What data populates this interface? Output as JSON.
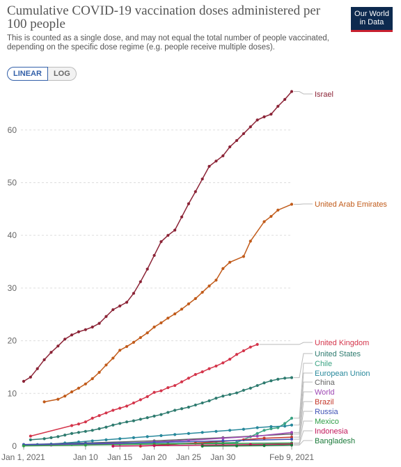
{
  "header": {
    "title": "Cumulative COVID-19 vaccination doses administered per 100 people",
    "subtitle": "This is counted as a single dose, and may not equal the total number of people vaccinated, depending on the specific dose regime (e.g. people receive multiple doses).",
    "logo_line1": "Our World",
    "logo_line2": "in Data"
  },
  "controls": {
    "linear_label": "LINEAR",
    "log_label": "LOG"
  },
  "colors": {
    "accent": "#3360a9",
    "logo_bg": "#0d2a4f",
    "logo_stripe": "#c8202f"
  },
  "chart_data": {
    "type": "line",
    "title": "Cumulative COVID-19 vaccination doses administered per 100 people",
    "xlabel": "",
    "ylabel": "",
    "x_range": [
      "2021-01-01",
      "2021-02-09"
    ],
    "ylim": [
      0,
      67.5
    ],
    "y_ticks": [
      0,
      10,
      20,
      30,
      40,
      50,
      60
    ],
    "x_ticks": [
      {
        "date": "2021-01-01",
        "label": "Jan 1, 2021"
      },
      {
        "date": "2021-01-10",
        "label": "Jan 10"
      },
      {
        "date": "2021-01-15",
        "label": "Jan 15"
      },
      {
        "date": "2021-01-20",
        "label": "Jan 20"
      },
      {
        "date": "2021-01-25",
        "label": "Jan 25"
      },
      {
        "date": "2021-01-30",
        "label": "Jan 30"
      },
      {
        "date": "2021-02-09",
        "label": "Feb 9, 2021"
      }
    ],
    "grid": "horizontal-dashed",
    "legend": "right-end-labels",
    "series": [
      {
        "name": "Israel",
        "color": "#8b2336",
        "points": [
          [
            "2021-01-01",
            12.3
          ],
          [
            "2021-01-02",
            13.1
          ],
          [
            "2021-01-03",
            14.7
          ],
          [
            "2021-01-04",
            16.4
          ],
          [
            "2021-01-05",
            17.8
          ],
          [
            "2021-01-06",
            19.0
          ],
          [
            "2021-01-07",
            20.3
          ],
          [
            "2021-01-08",
            21.1
          ],
          [
            "2021-01-09",
            21.7
          ],
          [
            "2021-01-10",
            22.1
          ],
          [
            "2021-01-11",
            22.6
          ],
          [
            "2021-01-12",
            23.3
          ],
          [
            "2021-01-13",
            24.6
          ],
          [
            "2021-01-14",
            25.9
          ],
          [
            "2021-01-15",
            26.6
          ],
          [
            "2021-01-16",
            27.3
          ],
          [
            "2021-01-17",
            29.0
          ],
          [
            "2021-01-18",
            31.2
          ],
          [
            "2021-01-19",
            33.6
          ],
          [
            "2021-01-20",
            36.2
          ],
          [
            "2021-01-21",
            38.8
          ],
          [
            "2021-01-22",
            40.0
          ],
          [
            "2021-01-23",
            41.0
          ],
          [
            "2021-01-24",
            43.5
          ],
          [
            "2021-01-25",
            46.0
          ],
          [
            "2021-01-26",
            48.3
          ],
          [
            "2021-01-27",
            50.7
          ],
          [
            "2021-01-28",
            53.1
          ],
          [
            "2021-01-29",
            54.1
          ],
          [
            "2021-01-30",
            55.1
          ],
          [
            "2021-01-31",
            56.8
          ],
          [
            "2021-02-01",
            58.0
          ],
          [
            "2021-02-02",
            59.3
          ],
          [
            "2021-02-03",
            60.6
          ],
          [
            "2021-02-04",
            61.9
          ],
          [
            "2021-02-05",
            62.5
          ],
          [
            "2021-02-06",
            63.0
          ],
          [
            "2021-02-07",
            64.5
          ],
          [
            "2021-02-08",
            65.8
          ],
          [
            "2021-02-09",
            67.3
          ]
        ]
      },
      {
        "name": "United Arab Emirates",
        "color": "#c15b1a",
        "points": [
          [
            "2021-01-04",
            8.4
          ],
          [
            "2021-01-06",
            8.9
          ],
          [
            "2021-01-07",
            9.5
          ],
          [
            "2021-01-08",
            10.3
          ],
          [
            "2021-01-09",
            11.0
          ],
          [
            "2021-01-10",
            11.8
          ],
          [
            "2021-01-11",
            12.8
          ],
          [
            "2021-01-12",
            14.0
          ],
          [
            "2021-01-13",
            15.4
          ],
          [
            "2021-01-14",
            16.7
          ],
          [
            "2021-01-15",
            18.2
          ],
          [
            "2021-01-16",
            18.9
          ],
          [
            "2021-01-17",
            19.7
          ],
          [
            "2021-01-18",
            20.6
          ],
          [
            "2021-01-19",
            21.5
          ],
          [
            "2021-01-20",
            22.6
          ],
          [
            "2021-01-21",
            23.4
          ],
          [
            "2021-01-22",
            24.3
          ],
          [
            "2021-01-23",
            25.1
          ],
          [
            "2021-01-24",
            26.0
          ],
          [
            "2021-01-25",
            27.0
          ],
          [
            "2021-01-26",
            28.0
          ],
          [
            "2021-01-27",
            29.2
          ],
          [
            "2021-01-28",
            30.4
          ],
          [
            "2021-01-29",
            31.5
          ],
          [
            "2021-01-30",
            33.7
          ],
          [
            "2021-01-31",
            34.9
          ],
          [
            "2021-02-02",
            36.0
          ],
          [
            "2021-02-03",
            38.9
          ],
          [
            "2021-02-05",
            42.6
          ],
          [
            "2021-02-06",
            43.6
          ],
          [
            "2021-02-07",
            44.8
          ],
          [
            "2021-02-09",
            45.9
          ]
        ]
      },
      {
        "name": "United Kingdom",
        "color": "#d4344a",
        "points": [
          [
            "2021-01-02",
            1.9
          ],
          [
            "2021-01-08",
            3.9
          ],
          [
            "2021-01-09",
            4.2
          ],
          [
            "2021-01-10",
            4.6
          ],
          [
            "2021-01-11",
            5.3
          ],
          [
            "2021-01-12",
            5.8
          ],
          [
            "2021-01-13",
            6.3
          ],
          [
            "2021-01-14",
            6.8
          ],
          [
            "2021-01-15",
            7.2
          ],
          [
            "2021-01-16",
            7.6
          ],
          [
            "2021-01-17",
            8.2
          ],
          [
            "2021-01-18",
            8.8
          ],
          [
            "2021-01-19",
            9.4
          ],
          [
            "2021-01-20",
            10.2
          ],
          [
            "2021-01-21",
            10.5
          ],
          [
            "2021-01-22",
            11.1
          ],
          [
            "2021-01-23",
            11.5
          ],
          [
            "2021-01-24",
            12.2
          ],
          [
            "2021-01-25",
            12.9
          ],
          [
            "2021-01-26",
            13.6
          ],
          [
            "2021-01-27",
            14.1
          ],
          [
            "2021-01-28",
            14.7
          ],
          [
            "2021-01-29",
            15.2
          ],
          [
            "2021-01-30",
            15.8
          ],
          [
            "2021-01-31",
            16.5
          ],
          [
            "2021-02-01",
            17.4
          ],
          [
            "2021-02-02",
            18.1
          ],
          [
            "2021-02-03",
            18.8
          ],
          [
            "2021-02-04",
            19.3
          ]
        ]
      },
      {
        "name": "United States",
        "color": "#2e7b6f",
        "points": [
          [
            "2021-01-02",
            1.2
          ],
          [
            "2021-01-04",
            1.4
          ],
          [
            "2021-01-05",
            1.6
          ],
          [
            "2021-01-06",
            1.8
          ],
          [
            "2021-01-07",
            2.1
          ],
          [
            "2021-01-08",
            2.4
          ],
          [
            "2021-01-09",
            2.6
          ],
          [
            "2021-01-10",
            2.8
          ],
          [
            "2021-01-11",
            3.0
          ],
          [
            "2021-01-12",
            3.3
          ],
          [
            "2021-01-13",
            3.6
          ],
          [
            "2021-01-14",
            4.0
          ],
          [
            "2021-01-15",
            4.3
          ],
          [
            "2021-01-16",
            4.6
          ],
          [
            "2021-01-17",
            4.8
          ],
          [
            "2021-01-18",
            5.1
          ],
          [
            "2021-01-19",
            5.4
          ],
          [
            "2021-01-20",
            5.7
          ],
          [
            "2021-01-21",
            6.0
          ],
          [
            "2021-01-22",
            6.4
          ],
          [
            "2021-01-23",
            6.8
          ],
          [
            "2021-01-24",
            7.1
          ],
          [
            "2021-01-25",
            7.4
          ],
          [
            "2021-01-26",
            7.8
          ],
          [
            "2021-01-27",
            8.2
          ],
          [
            "2021-01-28",
            8.6
          ],
          [
            "2021-01-29",
            9.1
          ],
          [
            "2021-01-30",
            9.5
          ],
          [
            "2021-01-31",
            9.8
          ],
          [
            "2021-02-01",
            10.1
          ],
          [
            "2021-02-02",
            10.6
          ],
          [
            "2021-02-03",
            11.0
          ],
          [
            "2021-02-04",
            11.5
          ],
          [
            "2021-02-05",
            12.0
          ],
          [
            "2021-02-06",
            12.4
          ],
          [
            "2021-02-07",
            12.7
          ],
          [
            "2021-02-08",
            12.9
          ],
          [
            "2021-02-09",
            13.0
          ]
        ]
      },
      {
        "name": "Chile",
        "color": "#3aa383",
        "points": [
          [
            "2021-01-01",
            0.2
          ],
          [
            "2021-01-08",
            0.3
          ],
          [
            "2021-01-15",
            0.4
          ],
          [
            "2021-01-22",
            0.5
          ],
          [
            "2021-01-29",
            0.6
          ],
          [
            "2021-02-01",
            0.7
          ],
          [
            "2021-02-03",
            1.8
          ],
          [
            "2021-02-04",
            2.4
          ],
          [
            "2021-02-05",
            3.0
          ],
          [
            "2021-02-06",
            3.3
          ],
          [
            "2021-02-07",
            3.5
          ],
          [
            "2021-02-08",
            4.3
          ],
          [
            "2021-02-09",
            5.3
          ]
        ]
      },
      {
        "name": "European Union",
        "color": "#27889b",
        "points": [
          [
            "2021-01-01",
            0.2
          ],
          [
            "2021-01-03",
            0.3
          ],
          [
            "2021-01-05",
            0.4
          ],
          [
            "2021-01-07",
            0.6
          ],
          [
            "2021-01-09",
            0.8
          ],
          [
            "2021-01-11",
            1.0
          ],
          [
            "2021-01-13",
            1.2
          ],
          [
            "2021-01-15",
            1.4
          ],
          [
            "2021-01-17",
            1.6
          ],
          [
            "2021-01-19",
            1.8
          ],
          [
            "2021-01-21",
            2.0
          ],
          [
            "2021-01-23",
            2.2
          ],
          [
            "2021-01-25",
            2.4
          ],
          [
            "2021-01-27",
            2.6
          ],
          [
            "2021-01-29",
            2.8
          ],
          [
            "2021-01-31",
            3.0
          ],
          [
            "2021-02-02",
            3.2
          ],
          [
            "2021-02-04",
            3.5
          ],
          [
            "2021-02-06",
            3.7
          ],
          [
            "2021-02-08",
            3.8
          ],
          [
            "2021-02-09",
            4.0
          ]
        ]
      },
      {
        "name": "China",
        "color": "#666666",
        "points": [
          [
            "2021-01-01",
            0.3
          ],
          [
            "2021-01-10",
            0.6
          ],
          [
            "2021-01-20",
            1.0
          ],
          [
            "2021-01-30",
            1.6
          ],
          [
            "2021-02-09",
            2.3
          ]
        ]
      },
      {
        "name": "World",
        "color": "#9e48b4",
        "points": [
          [
            "2021-01-01",
            0.1
          ],
          [
            "2021-01-05",
            0.2
          ],
          [
            "2021-01-10",
            0.3
          ],
          [
            "2021-01-15",
            0.5
          ],
          [
            "2021-01-20",
            0.8
          ],
          [
            "2021-01-25",
            1.1
          ],
          [
            "2021-01-30",
            1.5
          ],
          [
            "2021-02-04",
            1.9
          ],
          [
            "2021-02-09",
            2.6
          ]
        ]
      },
      {
        "name": "Brazil",
        "color": "#c4372a",
        "points": [
          [
            "2021-01-18",
            0.0
          ],
          [
            "2021-01-22",
            0.3
          ],
          [
            "2021-01-26",
            0.6
          ],
          [
            "2021-01-30",
            0.9
          ],
          [
            "2021-02-02",
            1.2
          ],
          [
            "2021-02-05",
            1.5
          ],
          [
            "2021-02-09",
            1.7
          ]
        ]
      },
      {
        "name": "Russia",
        "color": "#3f51b5",
        "points": [
          [
            "2021-01-01",
            0.3
          ],
          [
            "2021-01-10",
            0.5
          ],
          [
            "2021-01-20",
            0.7
          ],
          [
            "2021-01-30",
            1.0
          ],
          [
            "2021-02-09",
            1.3
          ]
        ]
      },
      {
        "name": "Mexico",
        "color": "#2f9e48",
        "points": [
          [
            "2021-01-01",
            0.05
          ],
          [
            "2021-01-10",
            0.2
          ],
          [
            "2021-01-20",
            0.4
          ],
          [
            "2021-01-30",
            0.5
          ],
          [
            "2021-02-09",
            0.6
          ]
        ]
      },
      {
        "name": "Indonesia",
        "color": "#c2185b",
        "points": [
          [
            "2021-01-14",
            0.0
          ],
          [
            "2021-01-20",
            0.1
          ],
          [
            "2021-01-27",
            0.2
          ],
          [
            "2021-02-03",
            0.3
          ],
          [
            "2021-02-09",
            0.4
          ]
        ]
      },
      {
        "name": "Bangladesh",
        "color": "#1b7a3a",
        "points": [
          [
            "2021-01-27",
            0.0
          ],
          [
            "2021-02-01",
            0.05
          ],
          [
            "2021-02-05",
            0.1
          ],
          [
            "2021-02-09",
            0.2
          ]
        ]
      }
    ]
  }
}
